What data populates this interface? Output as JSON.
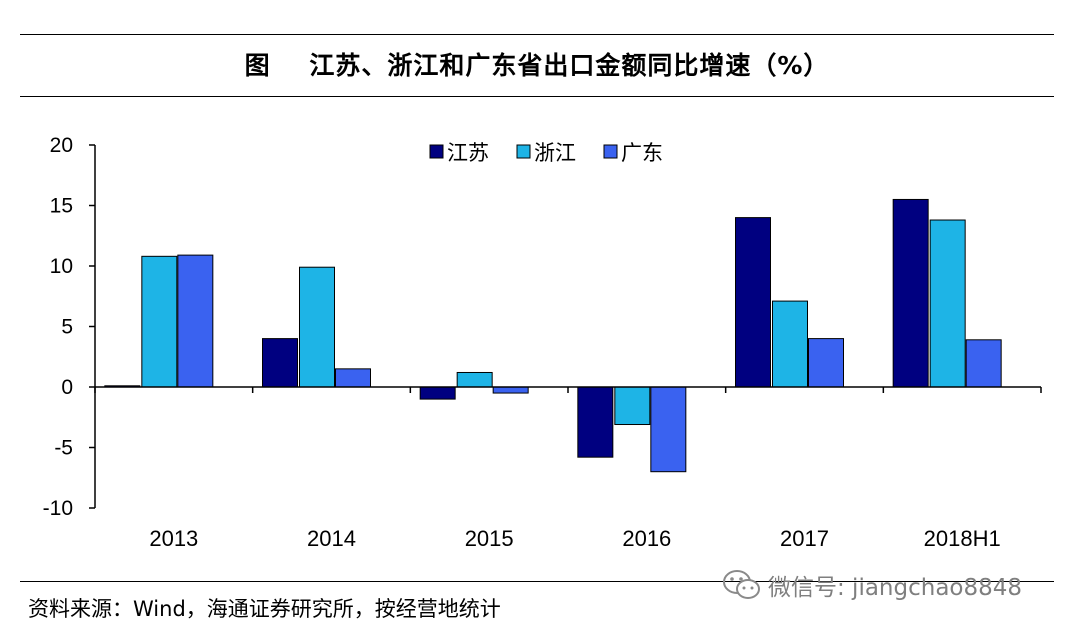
{
  "title": "图    江苏、浙江和广东省出口金额同比增速（%）",
  "source": "资料来源：Wind，海通证券研究所，按经营地统计",
  "watermark": "微信号: jiangchao8848",
  "colors": {
    "jiangsu": "#000080",
    "zhejiang": "#1EB4E6",
    "guangdong": "#3A62F0"
  },
  "chart_data": {
    "type": "bar",
    "title": "江苏、浙江和广东省出口金额同比增速（%）",
    "xlabel": "",
    "ylabel": "",
    "ylim": [
      -10,
      20
    ],
    "yticks": [
      20,
      15,
      10,
      5,
      0,
      -5,
      -10
    ],
    "grid": false,
    "legend_position": "top-center",
    "categories": [
      "2013",
      "2014",
      "2015",
      "2016",
      "2017",
      "2018H1"
    ],
    "series": [
      {
        "name": "江苏",
        "key": "jiangsu",
        "values": [
          0.1,
          4.0,
          -1.0,
          -5.8,
          14.0,
          15.5
        ]
      },
      {
        "name": "浙江",
        "key": "zhejiang",
        "values": [
          10.8,
          9.9,
          1.2,
          -3.1,
          7.1,
          13.8
        ]
      },
      {
        "name": "广东",
        "key": "guangdong",
        "values": [
          10.9,
          1.5,
          -0.5,
          -7.0,
          4.0,
          3.9
        ]
      }
    ]
  }
}
